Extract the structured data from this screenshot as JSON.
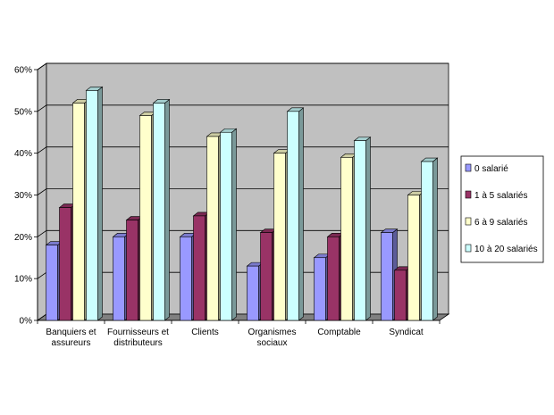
{
  "chart_data": {
    "type": "bar",
    "title": "",
    "xlabel": "",
    "ylabel": "",
    "ylim": [
      0,
      60
    ],
    "y_ticks": [
      "0%",
      "10%",
      "20%",
      "30%",
      "40%",
      "50%",
      "60%"
    ],
    "y_tick_values": [
      0,
      10,
      20,
      30,
      40,
      50,
      60
    ],
    "grid": true,
    "legend_position": "right",
    "categories": [
      [
        "Banquiers et",
        "assureurs"
      ],
      [
        "Fournisseurs et",
        "distributeurs"
      ],
      [
        "Clients"
      ],
      [
        "Organismes",
        "sociaux"
      ],
      [
        "Comptable"
      ],
      [
        "Syndicat"
      ]
    ],
    "series": [
      {
        "name": "0 salarié",
        "color": "#9999ff",
        "values": [
          18,
          20,
          20,
          13,
          15,
          21
        ]
      },
      {
        "name": "1 à 5 salariés",
        "color": "#993366",
        "values": [
          27,
          24,
          25,
          21,
          20,
          12
        ]
      },
      {
        "name": "6 à 9 salariés",
        "color": "#ffffcc",
        "values": [
          52,
          49,
          44,
          40,
          39,
          30
        ]
      },
      {
        "name": "10 à 20 salariés",
        "color": "#ccffff",
        "values": [
          55,
          52,
          45,
          50,
          43,
          38
        ]
      }
    ],
    "colors": {
      "plot_wall": "#c0c0c0",
      "floor": "#808080",
      "grid": "#000000"
    }
  }
}
